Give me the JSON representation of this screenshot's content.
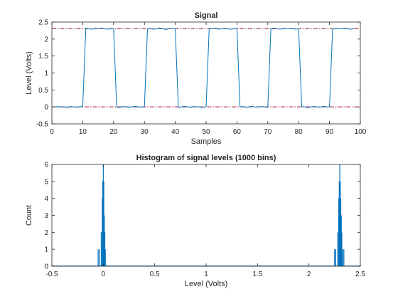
{
  "chart_data": [
    {
      "type": "line",
      "title": "Signal",
      "xlabel": "Samples",
      "ylabel": "Level (Volts)",
      "xlim": [
        0,
        100
      ],
      "ylim": [
        -0.5,
        2.5
      ],
      "xticks": [
        0,
        10,
        20,
        30,
        40,
        50,
        60,
        70,
        80,
        90,
        100
      ],
      "yticks": [
        -0.5,
        0,
        0.5,
        1,
        1.5,
        2,
        2.5
      ],
      "grid": false,
      "series": [
        {
          "color": "#0072BD",
          "x": [
            1,
            2,
            3,
            4,
            5,
            6,
            7,
            8,
            9,
            10,
            11,
            12,
            13,
            14,
            15,
            16,
            17,
            18,
            19,
            20,
            21,
            22,
            23,
            24,
            25,
            26,
            27,
            28,
            29,
            30,
            31,
            32,
            33,
            34,
            35,
            36,
            37,
            38,
            39,
            40,
            41,
            42,
            43,
            44,
            45,
            46,
            47,
            48,
            49,
            50,
            51,
            52,
            53,
            54,
            55,
            56,
            57,
            58,
            59,
            60,
            61,
            62,
            63,
            64,
            65,
            66,
            67,
            68,
            69,
            70,
            71,
            72,
            73,
            74,
            75,
            76,
            77,
            78,
            79,
            80,
            81,
            82,
            83,
            84,
            85,
            86,
            87,
            88,
            89,
            90,
            91,
            92,
            93,
            94,
            95,
            96,
            97,
            98
          ],
          "y": [
            0.0,
            0.01,
            -0.01,
            0.0,
            -0.02,
            0.01,
            0.0,
            -0.01,
            0.0,
            0.02,
            2.32,
            2.3,
            2.29,
            2.31,
            2.3,
            2.32,
            2.3,
            2.29,
            2.31,
            2.3,
            0.0,
            -0.02,
            0.01,
            0.0,
            -0.01,
            0.0,
            0.02,
            0.0,
            -0.01,
            0.01,
            2.3,
            2.31,
            2.29,
            2.3,
            2.32,
            2.3,
            2.28,
            2.31,
            2.3,
            2.3,
            -0.01,
            0.0,
            0.02,
            0.0,
            -0.01,
            0.01,
            0.0,
            0.0,
            -0.02,
            0.01,
            2.31,
            2.3,
            2.32,
            2.29,
            2.3,
            2.31,
            2.3,
            2.29,
            2.3,
            2.31,
            0.0,
            0.01,
            -0.01,
            0.0,
            0.02,
            -0.01,
            0.0,
            0.01,
            0.0,
            -0.01,
            2.3,
            2.32,
            2.3,
            2.29,
            2.31,
            2.3,
            2.3,
            2.31,
            2.29,
            2.3,
            0.01,
            0.0,
            -0.02,
            0.0,
            0.01,
            0.0,
            -0.01,
            0.02,
            0.0,
            0.0,
            2.29,
            2.31,
            2.3,
            2.3,
            2.32,
            2.3,
            2.29,
            2.31
          ]
        }
      ],
      "reference_lines": [
        {
          "y": 2.3,
          "color": "#A2142F",
          "style": "dash-dot"
        },
        {
          "y": 0.0,
          "color": "#A2142F",
          "style": "dash-dot"
        }
      ]
    },
    {
      "type": "bar",
      "title": "Histogram of signal levels (1000 bins)",
      "xlabel": "Level (Volts)",
      "ylabel": "Count",
      "xlim": [
        -0.5,
        2.5
      ],
      "ylim": [
        0,
        6
      ],
      "xticks": [
        -0.5,
        0,
        0.5,
        1,
        1.5,
        2,
        2.5
      ],
      "yticks": [
        0,
        1,
        2,
        3,
        4,
        5,
        6
      ],
      "grid": false,
      "color": "#0072BD",
      "bins": [
        {
          "x": -0.05,
          "count": 1
        },
        {
          "x": -0.04,
          "count": 1
        },
        {
          "x": -0.02,
          "count": 2
        },
        {
          "x": -0.01,
          "count": 4
        },
        {
          "x": -0.005,
          "count": 5
        },
        {
          "x": 0.0,
          "count": 6
        },
        {
          "x": 0.005,
          "count": 5
        },
        {
          "x": 0.01,
          "count": 3
        },
        {
          "x": 0.015,
          "count": 2
        },
        {
          "x": 0.02,
          "count": 1
        },
        {
          "x": 2.25,
          "count": 1
        },
        {
          "x": 2.26,
          "count": 1
        },
        {
          "x": 2.28,
          "count": 2
        },
        {
          "x": 2.29,
          "count": 4
        },
        {
          "x": 2.295,
          "count": 5
        },
        {
          "x": 2.3,
          "count": 6
        },
        {
          "x": 2.305,
          "count": 5
        },
        {
          "x": 2.31,
          "count": 4
        },
        {
          "x": 2.315,
          "count": 3
        },
        {
          "x": 2.32,
          "count": 2
        },
        {
          "x": 2.33,
          "count": 1
        },
        {
          "x": 2.34,
          "count": 1
        }
      ]
    }
  ]
}
